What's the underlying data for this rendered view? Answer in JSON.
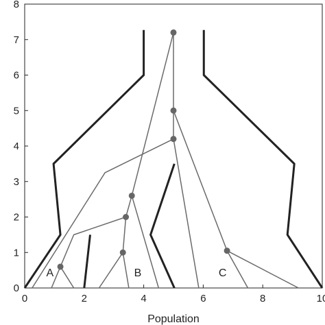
{
  "chart_data": {
    "type": "line",
    "xlabel": "Population",
    "xlim": [
      0,
      10
    ],
    "ylim": [
      0,
      8
    ],
    "xticks": [
      0,
      2,
      4,
      6,
      8,
      10
    ],
    "yticks": [
      0,
      1,
      2,
      3,
      4,
      5,
      6,
      7,
      8
    ],
    "series": [
      {
        "color": "#222222",
        "width": 3,
        "x": [
          0,
          1.2,
          0.97,
          4,
          4,
          null,
          10,
          8.83,
          9.06,
          6.02,
          6.02,
          null,
          2,
          2.2,
          null,
          5.03,
          4.23,
          5.03
        ],
        "y": [
          0,
          1.5,
          3.5,
          6,
          7.27,
          null,
          0,
          1.5,
          3.5,
          6,
          7.27,
          null,
          0,
          1.5,
          null,
          0,
          1.5,
          3.5
        ]
      },
      {
        "color": "#6a6a6a",
        "width": 1.5,
        "x": [
          5,
          5,
          5,
          5.85,
          null,
          5,
          3.6,
          3.4,
          3.3,
          2.5,
          null,
          3.3,
          3.5,
          null,
          3.6,
          4.5,
          null,
          3.4,
          1.65,
          1.2,
          0.9,
          null,
          1.2,
          1.65,
          null,
          5,
          2.7,
          0.25,
          null,
          5,
          6.8,
          7.5,
          null,
          6.8,
          9.2
        ],
        "y": [
          7.2,
          5,
          4.2,
          0,
          null,
          7.2,
          2.6,
          2.0,
          1.0,
          0,
          null,
          1.0,
          0,
          null,
          2.6,
          0,
          null,
          2.0,
          1.5,
          0.6,
          0,
          null,
          0.6,
          0,
          null,
          4.2,
          3.25,
          0,
          null,
          5,
          1.05,
          0,
          null,
          1.05,
          0
        ]
      }
    ],
    "points": {
      "color": "#666666",
      "x": [
        5,
        5,
        5,
        3.6,
        3.4,
        3.3,
        1.2,
        6.8
      ],
      "y": [
        7.2,
        5,
        4.2,
        2.6,
        2.0,
        1.0,
        0.6,
        1.05
      ]
    },
    "annotations": [
      {
        "text": "A",
        "x": 0.85,
        "y": 0.33
      },
      {
        "text": "B",
        "x": 3.8,
        "y": 0.33
      },
      {
        "text": "C",
        "x": 6.65,
        "y": 0.33
      }
    ]
  }
}
